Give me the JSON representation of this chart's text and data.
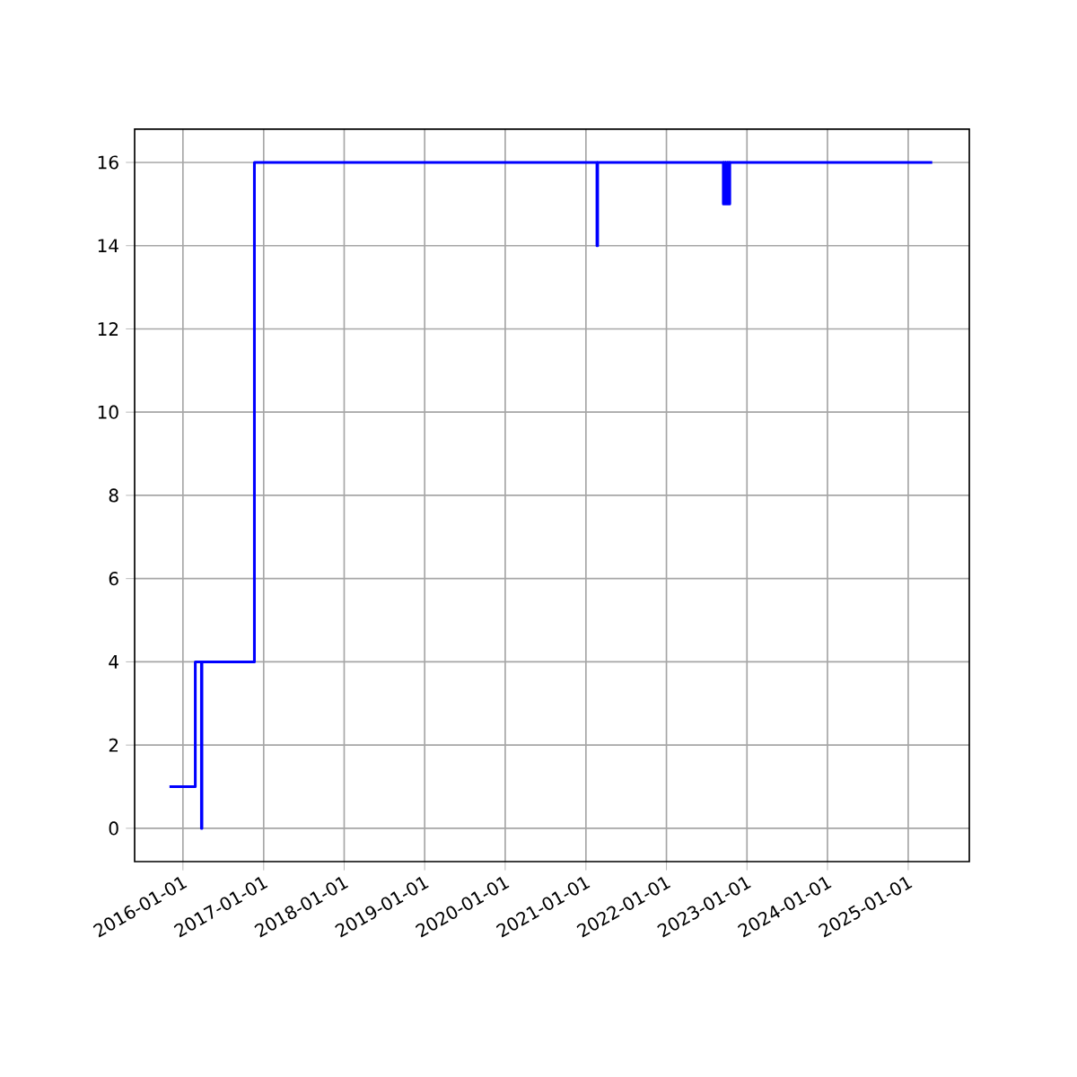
{
  "chart_data": {
    "type": "step",
    "grid": true,
    "line_style": "solid",
    "x": [
      "2015-11-01",
      "2016-02-26",
      "2016-03-25",
      "2016-03-27",
      "2016-11-20",
      "2021-02-20",
      "2021-02-23",
      "2022-09-16",
      "2022-09-18",
      "2022-09-25",
      "2022-09-27",
      "2022-10-05",
      "2022-10-07",
      "2022-10-13",
      "2022-10-15",
      "2025-04-20"
    ],
    "series": [
      {
        "color": "#0000ff",
        "values": [
          1,
          4,
          0,
          4,
          16,
          14,
          16,
          15,
          16,
          15,
          16,
          15,
          16,
          15,
          16,
          16
        ]
      }
    ],
    "xlim": [
      "2015-05-27",
      "2025-10-05"
    ],
    "ylim": [
      -0.8,
      16.8
    ],
    "xticks": [
      "2016-01-01",
      "2017-01-01",
      "2018-01-01",
      "2019-01-01",
      "2020-01-01",
      "2021-01-01",
      "2022-01-01",
      "2023-01-01",
      "2024-01-01",
      "2025-01-01"
    ],
    "yticks": [
      0,
      2,
      4,
      6,
      8,
      10,
      12,
      14,
      16
    ]
  }
}
